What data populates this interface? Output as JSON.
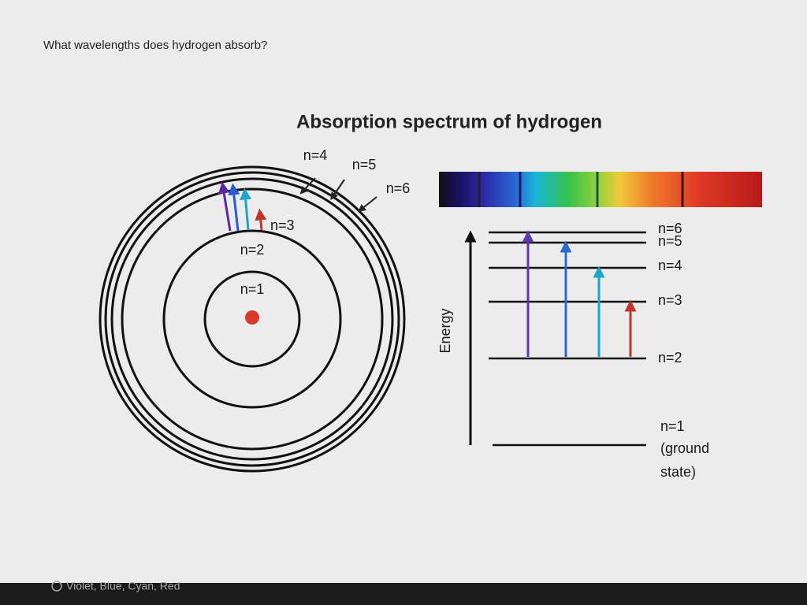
{
  "question": "What wavelengths does hydrogen absorb?",
  "figure": {
    "title": "Absorption spectrum of hydrogen",
    "atom_labels": [
      "n=1",
      "n=2",
      "n=3",
      "n=4",
      "n=5",
      "n=6"
    ],
    "energy_axis_label": "Energy",
    "level_labels": [
      "n=6",
      "n=5",
      "n=4",
      "n=3",
      "n=2",
      "n=1"
    ],
    "ground_state_note": [
      "(ground",
      "state)"
    ]
  },
  "options": [
    "Violet, Blue, Cyan, Red"
  ]
}
